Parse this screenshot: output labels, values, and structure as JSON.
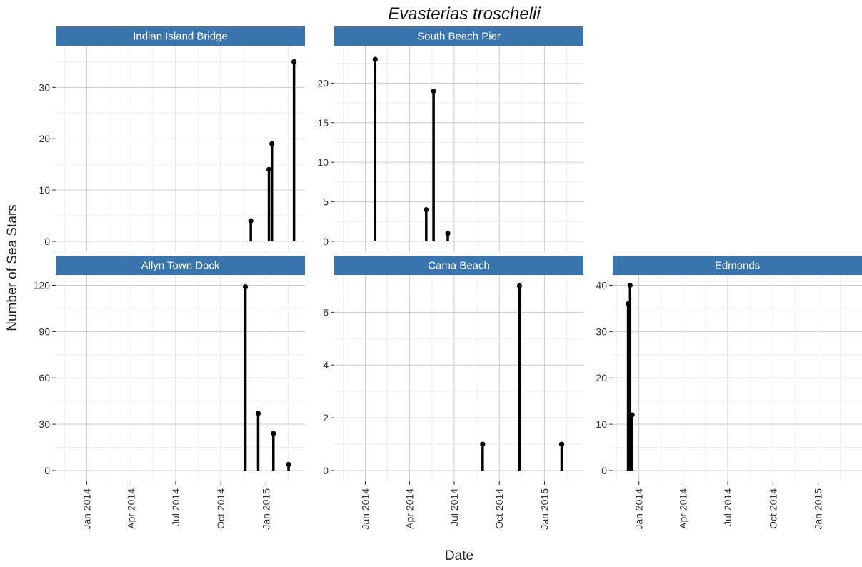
{
  "chart_data": {
    "type": "bar",
    "title": "Evasterias troschelii",
    "xlabel": "Date",
    "ylabel": "Number of Sea Stars",
    "grid": true,
    "colors": {
      "strip": "#3a75ad",
      "strip_text": "#ffffff",
      "bar": "#000000",
      "grid_major": "#cccccc",
      "grid_minor": "#eeeeee"
    },
    "x_ticks": [
      "Jan 2014",
      "Apr 2014",
      "Jul 2014",
      "Oct 2014",
      "Jan 2015"
    ],
    "panels": [
      {
        "name": "Indian Island Bridge",
        "ylim": [
          0,
          37
        ],
        "y_ticks": [
          0,
          10,
          20,
          30
        ],
        "points": [
          {
            "date": "2014-12-01",
            "value": 4
          },
          {
            "date": "2015-01-07",
            "value": 14
          },
          {
            "date": "2015-01-13",
            "value": 19
          },
          {
            "date": "2015-02-27",
            "value": 35
          }
        ]
      },
      {
        "name": "South Beach Pier",
        "ylim": [
          0,
          24
        ],
        "y_ticks": [
          0,
          5,
          10,
          15,
          20
        ],
        "points": [
          {
            "date": "2014-01-21",
            "value": 23
          },
          {
            "date": "2014-05-05",
            "value": 4
          },
          {
            "date": "2014-05-20",
            "value": 19
          },
          {
            "date": "2014-06-18",
            "value": 1
          }
        ]
      },
      {
        "name": "Allyn Town Dock",
        "ylim": [
          0,
          123
        ],
        "y_ticks": [
          0,
          30,
          60,
          90,
          120
        ],
        "points": [
          {
            "date": "2014-11-20",
            "value": 119
          },
          {
            "date": "2014-12-16",
            "value": 37
          },
          {
            "date": "2015-01-16",
            "value": 24
          },
          {
            "date": "2015-02-16",
            "value": 4
          }
        ]
      },
      {
        "name": "Cama Beach",
        "ylim": [
          0,
          7.2
        ],
        "y_ticks": [
          0,
          2,
          4,
          6
        ],
        "points": [
          {
            "date": "2014-08-28",
            "value": 1
          },
          {
            "date": "2014-11-11",
            "value": 7
          },
          {
            "date": "2015-02-05",
            "value": 1
          }
        ]
      },
      {
        "name": "Edmonds",
        "ylim": [
          0,
          41
        ],
        "y_ticks": [
          0,
          10,
          20,
          30,
          40
        ],
        "points": [
          {
            "date": "2013-12-10",
            "value": 36
          },
          {
            "date": "2013-12-14",
            "value": 40
          },
          {
            "date": "2013-12-18",
            "value": 12
          }
        ]
      }
    ]
  }
}
